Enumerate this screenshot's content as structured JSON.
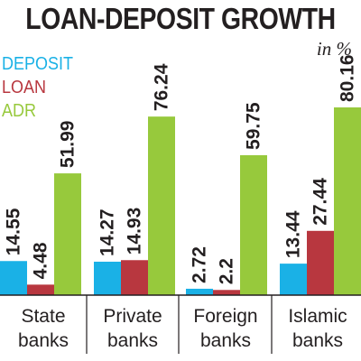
{
  "chart_data": {
    "type": "bar",
    "title": "LOAN-DEPOSIT GROWTH",
    "unit": "in %",
    "categories": [
      "State banks",
      "Private banks",
      "Foreign banks",
      "Islamic banks"
    ],
    "category_lines": [
      [
        "State",
        "banks"
      ],
      [
        "Private",
        "banks"
      ],
      [
        "Foreign",
        "banks"
      ],
      [
        "Islamic",
        "banks"
      ]
    ],
    "series": [
      {
        "name": "DEPOSIT",
        "color": "#1ab1e6",
        "values": [
          14.55,
          14.27,
          2.72,
          13.44
        ],
        "labels": [
          "14.55",
          "14.27",
          "2.72",
          "13.44"
        ]
      },
      {
        "name": "LOAN",
        "color": "#b8373f",
        "values": [
          4.48,
          14.93,
          2.2,
          27.44
        ],
        "labels": [
          "4.48",
          "14.93",
          "2.2",
          "27.44"
        ]
      },
      {
        "name": "ADR",
        "color": "#97c93c",
        "values": [
          51.99,
          76.24,
          59.75,
          80.16
        ],
        "labels": [
          "51.99",
          "76.24",
          "59.75",
          "80.16"
        ]
      }
    ],
    "ylim": [
      0,
      80.16
    ],
    "grid": false,
    "legend_position": "top-left"
  }
}
